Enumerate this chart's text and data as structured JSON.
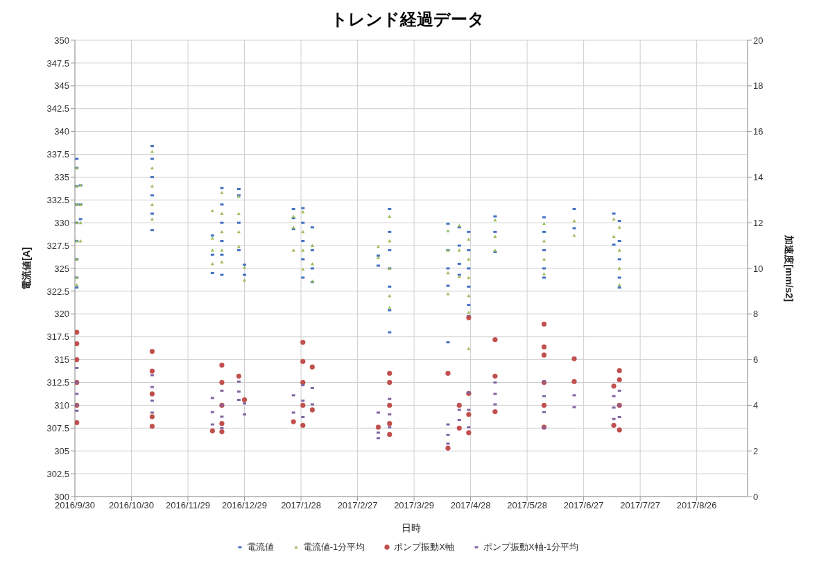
{
  "chart_data": {
    "type": "scatter",
    "title": "トレンド経過データ",
    "xlabel": "日時",
    "ylabel": "電流値[A]",
    "y2label": "加速度[mm/s2]",
    "grid": true,
    "legend": "bottom",
    "xlim": [
      "2016-09-30",
      "2017-09-22"
    ],
    "xticks": [
      {
        "value": "2016-09-30",
        "label": "2016/9/30"
      },
      {
        "value": "2016-10-30",
        "label": "2016/10/30"
      },
      {
        "value": "2016-11-29",
        "label": "2016/11/29"
      },
      {
        "value": "2016-12-29",
        "label": "2016/12/29"
      },
      {
        "value": "2017-01-28",
        "label": "2017/1/28"
      },
      {
        "value": "2017-02-27",
        "label": "2017/2/27"
      },
      {
        "value": "2017-03-29",
        "label": "2017/3/29"
      },
      {
        "value": "2017-04-28",
        "label": "2017/4/28"
      },
      {
        "value": "2017-05-28",
        "label": "2017/5/28"
      },
      {
        "value": "2017-06-27",
        "label": "2017/6/27"
      },
      {
        "value": "2017-07-27",
        "label": "2017/7/27"
      },
      {
        "value": "2017-08-26",
        "label": "2017/8/26"
      }
    ],
    "ylim": [
      300,
      350
    ],
    "yticks": [
      300,
      302.5,
      305,
      307.5,
      310,
      312.5,
      315,
      317.5,
      320,
      322.5,
      325,
      327.5,
      330,
      332.5,
      335,
      337.5,
      340,
      342.5,
      345,
      347.5,
      350
    ],
    "y2lim": [
      0,
      20
    ],
    "y2ticks": [
      0,
      2,
      4,
      6,
      8,
      10,
      12,
      14,
      16,
      18,
      20
    ],
    "series": [
      {
        "name": "電流値",
        "color": "#4472c4",
        "marker": "square",
        "x": [
          "2016-10-01",
          "2016-10-01",
          "2016-10-01",
          "2016-10-01",
          "2016-10-01",
          "2016-10-01",
          "2016-10-01",
          "2016-10-01",
          "2016-10-01",
          "2016-10-03",
          "2016-10-03",
          "2016-10-03",
          "2016-11-10",
          "2016-11-10",
          "2016-11-10",
          "2016-11-10",
          "2016-11-10",
          "2016-11-10",
          "2016-12-12",
          "2016-12-12",
          "2016-12-12",
          "2016-12-17",
          "2016-12-17",
          "2016-12-17",
          "2016-12-17",
          "2016-12-17",
          "2016-12-17",
          "2016-12-26",
          "2016-12-26",
          "2016-12-26",
          "2016-12-26",
          "2016-12-29",
          "2016-12-29",
          "2017-01-24",
          "2017-01-24",
          "2017-01-24",
          "2017-01-29",
          "2017-01-29",
          "2017-01-29",
          "2017-01-29",
          "2017-01-29",
          "2017-02-03",
          "2017-02-03",
          "2017-02-03",
          "2017-02-03",
          "2017-03-10",
          "2017-03-10",
          "2017-03-16",
          "2017-03-16",
          "2017-03-16",
          "2017-03-16",
          "2017-03-16",
          "2017-03-16",
          "2017-03-16",
          "2017-04-16",
          "2017-04-16",
          "2017-04-16",
          "2017-04-16",
          "2017-04-16",
          "2017-04-22",
          "2017-04-22",
          "2017-04-22",
          "2017-04-22",
          "2017-04-27",
          "2017-04-27",
          "2017-04-27",
          "2017-04-27",
          "2017-04-27",
          "2017-04-27",
          "2017-05-11",
          "2017-05-11",
          "2017-05-11",
          "2017-06-06",
          "2017-06-06",
          "2017-06-06",
          "2017-06-06",
          "2017-06-06",
          "2017-06-22",
          "2017-06-22",
          "2017-07-13",
          "2017-07-13",
          "2017-07-16",
          "2017-07-16",
          "2017-07-16",
          "2017-07-16",
          "2017-07-16"
        ],
        "values": [
          337.0,
          336.0,
          334.0,
          332.0,
          330.0,
          328.0,
          326.0,
          324.0,
          322.9,
          334.1,
          332.0,
          330.4,
          338.4,
          337.0,
          335.0,
          333.0,
          331.0,
          329.2,
          328.6,
          326.5,
          324.5,
          333.8,
          332.0,
          330.0,
          328.0,
          326.5,
          324.3,
          333.7,
          333.0,
          330.0,
          327.0,
          325.4,
          324.3,
          331.5,
          330.5,
          329.3,
          331.6,
          330.0,
          328.0,
          326.0,
          324.0,
          329.5,
          327.0,
          325.0,
          323.5,
          326.4,
          325.3,
          331.5,
          329.0,
          327.0,
          325.0,
          323.0,
          320.4,
          318.0,
          329.9,
          327.0,
          325.0,
          323.1,
          316.9,
          329.5,
          327.5,
          325.5,
          324.3,
          329.0,
          327.0,
          325.0,
          323.0,
          321.0,
          319.8,
          330.7,
          329.0,
          326.8,
          330.6,
          329.0,
          327.0,
          325.0,
          324.0,
          331.5,
          329.4,
          331.0,
          327.6,
          330.2,
          328.0,
          326.0,
          324.0,
          322.9
        ]
      },
      {
        "name": "電流値-1分平均",
        "color": "#9bbb59",
        "marker": "triangle",
        "x": [
          "2016-10-01",
          "2016-10-01",
          "2016-10-01",
          "2016-10-01",
          "2016-10-01",
          "2016-10-01",
          "2016-10-01",
          "2016-10-01",
          "2016-10-03",
          "2016-10-03",
          "2016-10-03",
          "2016-10-03",
          "2016-11-10",
          "2016-11-10",
          "2016-11-10",
          "2016-11-10",
          "2016-11-10",
          "2016-12-12",
          "2016-12-12",
          "2016-12-12",
          "2016-12-12",
          "2016-12-17",
          "2016-12-17",
          "2016-12-17",
          "2016-12-17",
          "2016-12-17",
          "2016-12-26",
          "2016-12-26",
          "2016-12-26",
          "2016-12-26",
          "2016-12-29",
          "2016-12-29",
          "2017-01-24",
          "2017-01-24",
          "2017-01-24",
          "2017-01-29",
          "2017-01-29",
          "2017-01-29",
          "2017-01-29",
          "2017-02-03",
          "2017-02-03",
          "2017-02-03",
          "2017-03-10",
          "2017-03-10",
          "2017-03-16",
          "2017-03-16",
          "2017-03-16",
          "2017-03-16",
          "2017-03-16",
          "2017-04-16",
          "2017-04-16",
          "2017-04-16",
          "2017-04-16",
          "2017-04-22",
          "2017-04-22",
          "2017-04-22",
          "2017-04-27",
          "2017-04-27",
          "2017-04-27",
          "2017-04-27",
          "2017-04-27",
          "2017-04-27",
          "2017-05-11",
          "2017-05-11",
          "2017-05-11",
          "2017-06-06",
          "2017-06-06",
          "2017-06-06",
          "2017-06-06",
          "2017-06-22",
          "2017-06-22",
          "2017-07-13",
          "2017-07-13",
          "2017-07-16",
          "2017-07-16",
          "2017-07-16",
          "2017-07-16"
        ],
        "values": [
          336.0,
          334.0,
          332.0,
          330.0,
          328.0,
          326.0,
          324.0,
          323.2,
          334.1,
          332.0,
          330.0,
          328.0,
          337.8,
          336.0,
          334.0,
          332.0,
          330.4,
          331.3,
          328.3,
          327.0,
          325.5,
          333.3,
          331.0,
          329.0,
          327.0,
          325.7,
          332.9,
          331.0,
          329.0,
          327.4,
          325.1,
          323.7,
          330.7,
          329.5,
          327.0,
          331.2,
          329.0,
          327.0,
          324.9,
          327.5,
          325.5,
          323.6,
          327.4,
          326.2,
          330.7,
          328.0,
          325.0,
          322.0,
          320.7,
          329.1,
          327.0,
          324.5,
          322.2,
          329.7,
          327.0,
          324.1,
          328.2,
          326.0,
          324.0,
          322.0,
          320.2,
          316.2,
          330.3,
          328.5,
          327.0,
          329.9,
          328.0,
          326.0,
          324.4,
          330.2,
          328.6,
          330.4,
          328.5,
          329.5,
          327.0,
          325.0,
          323.2
        ]
      },
      {
        "name": "ポンプ振動X軸",
        "color": "#c0504d",
        "marker": "circle",
        "axis": "y2",
        "x": [
          "2016-10-01",
          "2016-10-01",
          "2016-10-01",
          "2016-10-01",
          "2016-10-01",
          "2016-10-01",
          "2016-11-10",
          "2016-11-10",
          "2016-11-10",
          "2016-11-10",
          "2016-11-10",
          "2016-12-12",
          "2016-12-17",
          "2016-12-17",
          "2016-12-17",
          "2016-12-17",
          "2016-12-17",
          "2016-12-26",
          "2016-12-29",
          "2017-01-24",
          "2017-01-29",
          "2017-01-29",
          "2017-01-29",
          "2017-01-29",
          "2017-01-29",
          "2017-02-03",
          "2017-02-03",
          "2017-03-10",
          "2017-03-16",
          "2017-03-16",
          "2017-03-16",
          "2017-03-16",
          "2017-03-16",
          "2017-04-16",
          "2017-04-16",
          "2017-04-22",
          "2017-04-22",
          "2017-04-27",
          "2017-04-27",
          "2017-04-27",
          "2017-04-27",
          "2017-05-11",
          "2017-05-11",
          "2017-05-11",
          "2017-06-06",
          "2017-06-06",
          "2017-06-06",
          "2017-06-06",
          "2017-06-06",
          "2017-06-06",
          "2017-06-22",
          "2017-06-22",
          "2017-07-13",
          "2017-07-13",
          "2017-07-16",
          "2017-07-16",
          "2017-07-16",
          "2017-07-16"
        ],
        "values": [
          7.2,
          6.7,
          6.0,
          5.0,
          4.0,
          3.24,
          6.36,
          5.5,
          4.5,
          3.5,
          3.08,
          2.88,
          5.76,
          5.0,
          4.0,
          3.2,
          2.84,
          5.28,
          4.24,
          3.28,
          6.76,
          5.92,
          5.0,
          4.0,
          3.12,
          5.68,
          3.8,
          3.04,
          5.4,
          5.0,
          4.0,
          3.2,
          2.72,
          5.4,
          2.12,
          4.0,
          3.0,
          7.84,
          4.52,
          3.6,
          2.8,
          6.88,
          5.28,
          3.72,
          7.56,
          6.56,
          6.2,
          5.0,
          4.0,
          3.04,
          6.04,
          5.04,
          4.84,
          3.12,
          5.52,
          5.12,
          4.0,
          2.92
        ]
      },
      {
        "name": "ポンプ振動X軸-1分平均",
        "color": "#8064a2",
        "marker": "square",
        "axis": "y2",
        "x": [
          "2016-10-01",
          "2016-10-01",
          "2016-10-01",
          "2016-10-01",
          "2016-10-01",
          "2016-11-10",
          "2016-11-10",
          "2016-11-10",
          "2016-11-10",
          "2016-12-12",
          "2016-12-12",
          "2016-12-12",
          "2016-12-17",
          "2016-12-17",
          "2016-12-17",
          "2016-12-17",
          "2016-12-26",
          "2016-12-26",
          "2016-12-26",
          "2016-12-29",
          "2016-12-29",
          "2017-01-24",
          "2017-01-24",
          "2017-01-29",
          "2017-01-29",
          "2017-01-29",
          "2017-02-03",
          "2017-02-03",
          "2017-03-10",
          "2017-03-10",
          "2017-03-10",
          "2017-03-16",
          "2017-03-16",
          "2017-03-16",
          "2017-04-16",
          "2017-04-16",
          "2017-04-16",
          "2017-04-22",
          "2017-04-22",
          "2017-04-27",
          "2017-04-27",
          "2017-04-27",
          "2017-05-11",
          "2017-05-11",
          "2017-05-11",
          "2017-06-06",
          "2017-06-06",
          "2017-06-06",
          "2017-06-06",
          "2017-06-22",
          "2017-06-22",
          "2017-07-13",
          "2017-07-13",
          "2017-07-13",
          "2017-07-16",
          "2017-07-16",
          "2017-07-16"
        ],
        "values": [
          5.64,
          5.0,
          4.5,
          4.0,
          3.76,
          5.32,
          4.8,
          4.2,
          3.68,
          4.32,
          3.7,
          3.16,
          4.64,
          4.0,
          3.5,
          3.0,
          5.04,
          4.6,
          4.24,
          4.08,
          3.6,
          4.44,
          3.68,
          4.88,
          4.2,
          3.48,
          4.76,
          4.04,
          3.68,
          2.8,
          2.56,
          4.28,
          3.6,
          3.04,
          3.16,
          2.7,
          2.32,
          3.8,
          3.36,
          4.56,
          3.8,
          3.04,
          5.0,
          4.5,
          4.04,
          5.04,
          4.4,
          3.7,
          3.0,
          4.44,
          3.92,
          4.4,
          3.9,
          3.4,
          4.64,
          4.0,
          3.48
        ]
      }
    ]
  }
}
